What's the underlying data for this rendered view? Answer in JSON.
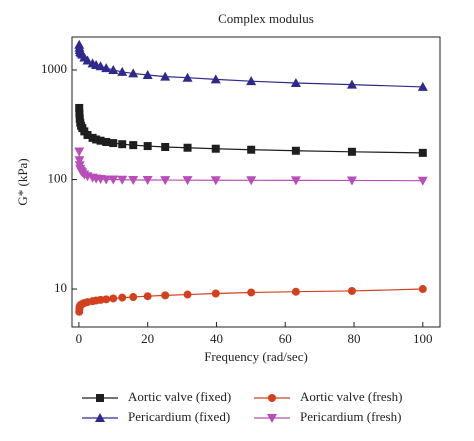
{
  "chart_data": {
    "type": "line",
    "title": "Complex modulus",
    "xlabel": "Frequency (rad/sec)",
    "ylabel": "G* (kPa)",
    "yscale": "log",
    "legend": "bottom",
    "xlim": [
      -2,
      105
    ],
    "xticks": [
      0,
      20,
      40,
      60,
      80,
      100
    ],
    "ylim": [
      4.5,
      2000
    ],
    "yticks": [
      10,
      100,
      1000
    ],
    "x": [
      0.1,
      0.16,
      0.25,
      0.4,
      0.63,
      1,
      1.58,
      2.51,
      3.98,
      5.01,
      6.31,
      7.94,
      10,
      12.6,
      15.8,
      20,
      25.1,
      31.6,
      39.8,
      50.1,
      63.1,
      79.4,
      100
    ],
    "series": [
      {
        "name": "Aortic valve (fixed)",
        "color": "#1e1e1e",
        "marker": "square",
        "values": [
          450,
          400,
          360,
          330,
          310,
          295,
          275,
          255,
          240,
          232,
          226,
          220,
          215,
          210,
          206,
          202,
          198,
          195,
          191,
          187,
          183,
          179,
          175
        ]
      },
      {
        "name": "Pericardium (fixed)",
        "color": "#2e2a8c",
        "marker": "triangle-up",
        "values": [
          1700,
          1600,
          1520,
          1460,
          1420,
          1380,
          1300,
          1220,
          1150,
          1110,
          1080,
          1040,
          1000,
          960,
          930,
          900,
          870,
          850,
          820,
          790,
          760,
          735,
          700
        ]
      },
      {
        "name": "Aortic valve (fresh)",
        "color": "#d2401e",
        "marker": "circle",
        "values": [
          6.2,
          6.6,
          6.9,
          7.1,
          7.2,
          7.3,
          7.45,
          7.6,
          7.75,
          7.85,
          7.95,
          8.05,
          8.2,
          8.35,
          8.45,
          8.6,
          8.75,
          8.9,
          9.1,
          9.3,
          9.45,
          9.6,
          10
        ]
      },
      {
        "name": "Pericardium (fresh)",
        "color": "#b84fb8",
        "marker": "triangle-down",
        "values": [
          180,
          150,
          135,
          125,
          120,
          116,
          111,
          107,
          104,
          102,
          101,
          100,
          100,
          99.5,
          99,
          99,
          98.8,
          98.6,
          98.5,
          98.3,
          98.2,
          98,
          97.5
        ]
      }
    ]
  }
}
